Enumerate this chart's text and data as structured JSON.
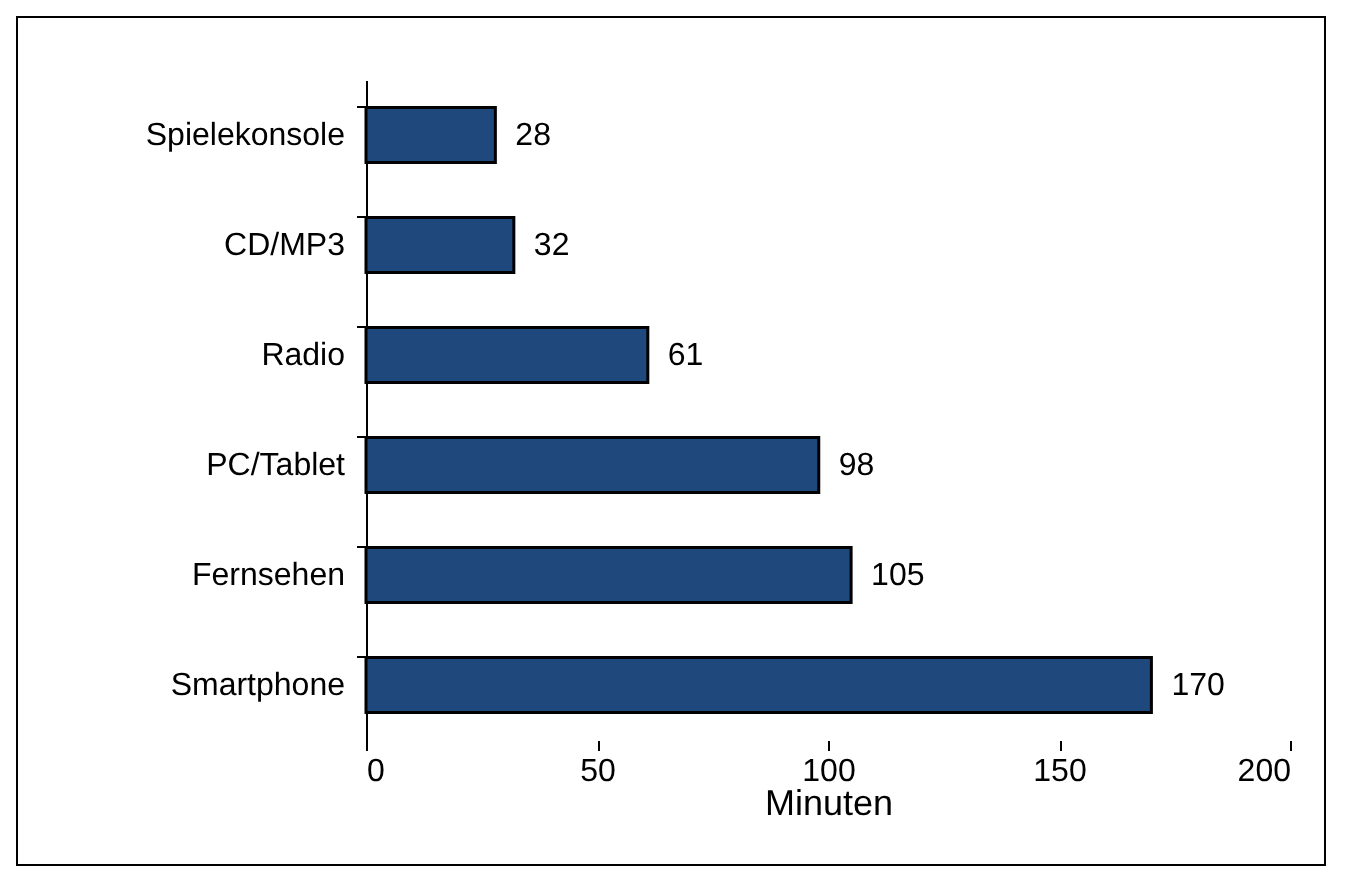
{
  "chart_data": {
    "type": "bar",
    "orientation": "horizontal",
    "xlabel": "Minuten",
    "categories": [
      "Spielekonsole",
      "CD/MP3",
      "Radio",
      "PC/Tablet",
      "Fernsehen",
      "Smartphone"
    ],
    "values": [
      28,
      32,
      61,
      98,
      105,
      170
    ],
    "color": "#1f497d",
    "xlim": [
      0,
      200
    ],
    "xticks": [
      0,
      50,
      100,
      150,
      200
    ],
    "data_labels": true,
    "grid": false
  }
}
